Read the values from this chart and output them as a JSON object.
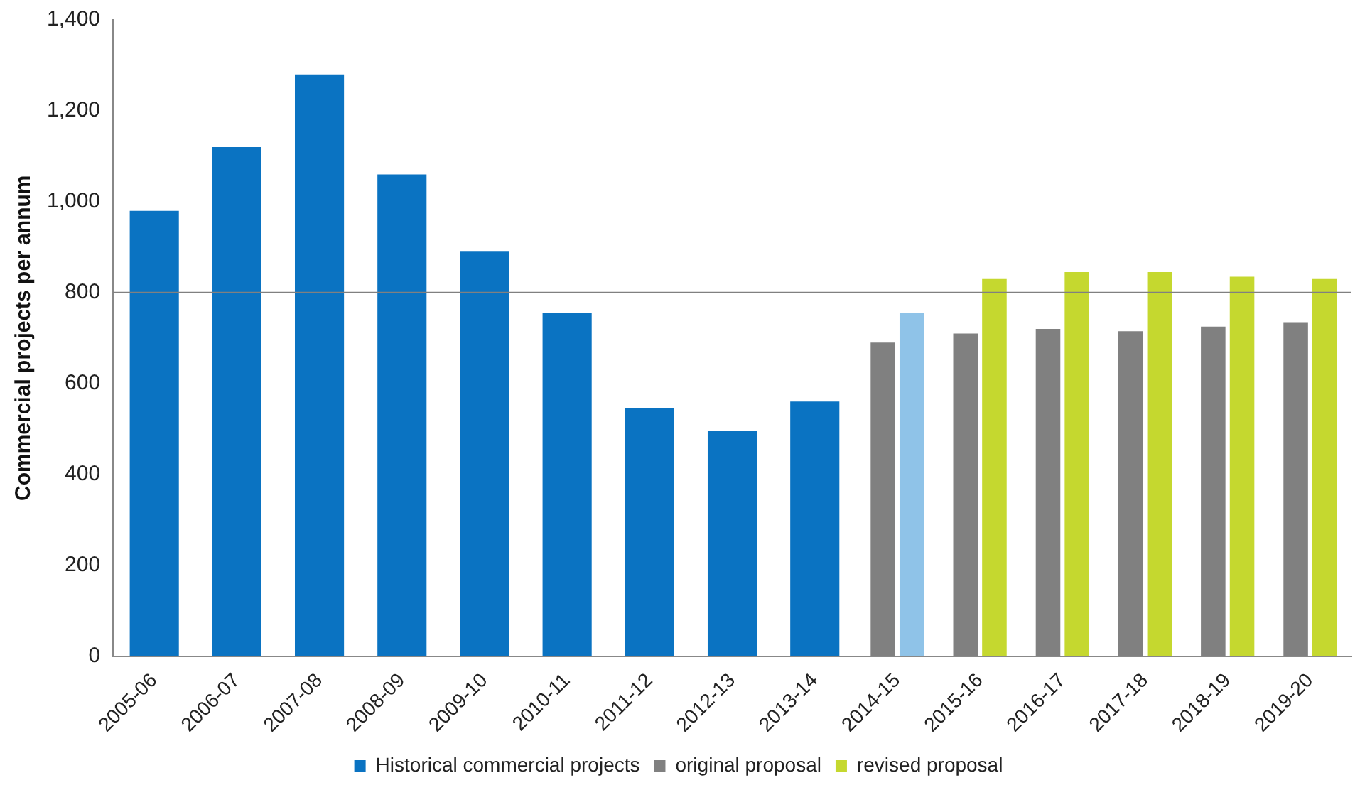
{
  "chart_data": {
    "type": "bar",
    "ylabel": "Commercial projects per annum",
    "categories": [
      "2005-06",
      "2006-07",
      "2007-08",
      "2008-09",
      "2009-10",
      "2010-11",
      "2011-12",
      "2012-13",
      "2013-14",
      "2014-15",
      "2015-16",
      "2016-17",
      "2017-18",
      "2018-19",
      "2019-20"
    ],
    "series": [
      {
        "name": "Historical commercial projects",
        "color": "#0a73c2",
        "values": [
          980,
          1120,
          1280,
          1060,
          890,
          755,
          545,
          495,
          560,
          null,
          null,
          null,
          null,
          null,
          null
        ]
      },
      {
        "name": "original proposal",
        "color": "#808080",
        "values": [
          null,
          null,
          null,
          null,
          null,
          null,
          null,
          null,
          null,
          690,
          710,
          720,
          715,
          725,
          735
        ]
      },
      {
        "color": "#8fc3e8",
        "values": [
          null,
          null,
          null,
          null,
          null,
          null,
          null,
          null,
          null,
          755,
          null,
          null,
          null,
          null,
          null
        ]
      },
      {
        "name": "revised proposal",
        "color": "#c5d82f",
        "values": [
          null,
          null,
          null,
          null,
          null,
          null,
          null,
          null,
          null,
          null,
          830,
          845,
          845,
          835,
          830
        ]
      }
    ],
    "ylim": [
      0,
      1400
    ],
    "yticks": [
      {
        "value": 0,
        "label": "0"
      },
      {
        "value": 200,
        "label": "200"
      },
      {
        "value": 400,
        "label": "400"
      },
      {
        "value": 600,
        "label": "600"
      },
      {
        "value": 800,
        "label": "800"
      },
      {
        "value": 1000,
        "label": "1,000"
      },
      {
        "value": 1200,
        "label": "1,200"
      },
      {
        "value": 1400,
        "label": "1,400"
      }
    ],
    "ref_lines": [
      {
        "axis": "y",
        "value": 800,
        "color": "#808080"
      }
    ],
    "legend": "bottom",
    "grid": false
  }
}
